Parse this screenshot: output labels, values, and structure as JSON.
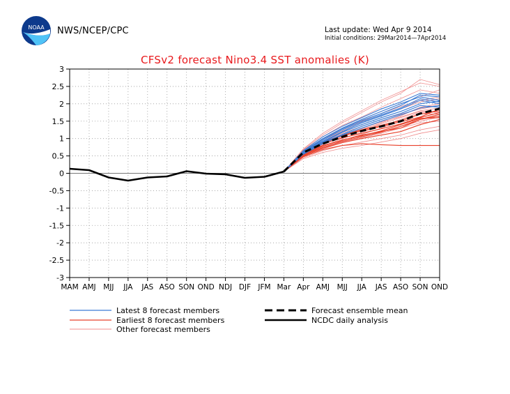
{
  "header": {
    "agency": "NWS/NCEP/CPC",
    "logo_text": "NOAA",
    "last_update": "Last update: Wed Apr 9 2014",
    "initial_conditions": "Initial conditions: 29Mar2014—7Apr2014"
  },
  "chart_data": {
    "type": "line",
    "title": "CFSv2 forecast Nino3.4 SST anomalies (K)",
    "xlabel": "",
    "ylabel": "",
    "categories": [
      "MAM",
      "AMJ",
      "MJJ",
      "JJA",
      "JAS",
      "ASO",
      "SON",
      "OND",
      "NDJ",
      "DJF",
      "JFM",
      "Mar",
      "Apr",
      "AMJ",
      "MJJ",
      "JJA",
      "JAS",
      "ASO",
      "SON",
      "OND"
    ],
    "ylim": [
      -3,
      3
    ],
    "yticks": [
      "-3",
      "-2.5",
      "-2",
      "-1.5",
      "-1",
      "-0.5",
      "0",
      "0.5",
      "1",
      "1.5",
      "2",
      "2.5",
      "3"
    ],
    "grid": true,
    "legend_position": "bottom",
    "colors": {
      "latest": "#3a7bd5",
      "earliest": "#e8402a",
      "other": "#f08c8c",
      "title": "#e8191c"
    },
    "legend": {
      "latest": "Latest 8 forecast members",
      "earliest": "Earliest 8 forecast members",
      "other": "Other forecast members",
      "mean": "Forecast ensemble mean",
      "analysis": "NCDC daily analysis"
    },
    "analysis": {
      "name": "NCDC daily analysis",
      "x_index": [
        0,
        1,
        2,
        3,
        4,
        5,
        6,
        7,
        8,
        9,
        10,
        11
      ],
      "values": [
        0.13,
        0.09,
        -0.12,
        -0.21,
        -0.12,
        -0.09,
        0.06,
        -0.01,
        -0.03,
        -0.13,
        -0.1,
        0.05
      ]
    },
    "ensemble_mean": {
      "name": "Forecast ensemble mean",
      "x_index": [
        11,
        12,
        13,
        14,
        15,
        16,
        17,
        18,
        19
      ],
      "values": [
        0.05,
        0.6,
        0.85,
        1.05,
        1.22,
        1.35,
        1.5,
        1.72,
        1.86
      ]
    },
    "latest_members": [
      [
        0.05,
        0.65,
        1.05,
        1.35,
        1.6,
        1.85,
        2.05,
        2.3,
        2.25
      ],
      [
        0.05,
        0.62,
        0.98,
        1.28,
        1.52,
        1.72,
        1.95,
        2.25,
        2.2
      ],
      [
        0.05,
        0.6,
        0.95,
        1.25,
        1.48,
        1.68,
        1.88,
        2.15,
        2.05
      ],
      [
        0.05,
        0.63,
        1.0,
        1.3,
        1.55,
        1.78,
        2.0,
        2.2,
        2.1
      ],
      [
        0.05,
        0.58,
        0.9,
        1.18,
        1.4,
        1.6,
        1.78,
        2.0,
        2.08
      ],
      [
        0.05,
        0.55,
        0.85,
        1.1,
        1.3,
        1.5,
        1.68,
        1.88,
        1.95
      ],
      [
        0.05,
        0.6,
        0.92,
        1.2,
        1.45,
        1.65,
        1.85,
        2.1,
        2.0
      ],
      [
        0.05,
        0.57,
        0.88,
        1.12,
        1.35,
        1.55,
        1.72,
        1.95,
        1.9
      ]
    ],
    "earliest_members": [
      [
        0.05,
        0.55,
        0.8,
        0.95,
        1.1,
        1.2,
        1.3,
        1.55,
        1.7
      ],
      [
        0.05,
        0.5,
        0.72,
        0.88,
        1.0,
        1.1,
        1.2,
        1.4,
        1.55
      ],
      [
        0.05,
        0.62,
        0.9,
        1.1,
        1.25,
        1.38,
        1.52,
        1.7,
        1.8
      ],
      [
        0.05,
        0.48,
        0.68,
        0.8,
        0.85,
        0.82,
        0.8,
        0.8,
        0.8
      ],
      [
        0.05,
        0.58,
        0.85,
        1.02,
        1.15,
        1.28,
        1.42,
        1.6,
        1.75
      ],
      [
        0.05,
        0.52,
        0.75,
        0.92,
        1.05,
        1.18,
        1.35,
        1.55,
        1.65
      ],
      [
        0.05,
        0.6,
        0.88,
        1.08,
        1.22,
        1.35,
        1.48,
        1.62,
        1.85
      ],
      [
        0.05,
        0.54,
        0.78,
        0.96,
        1.08,
        1.22,
        1.4,
        1.58,
        1.6
      ]
    ],
    "other_members": [
      [
        0.05,
        0.7,
        1.15,
        1.5,
        1.8,
        2.1,
        2.35,
        2.6,
        2.5
      ],
      [
        0.05,
        0.68,
        1.1,
        1.45,
        1.75,
        2.05,
        2.3,
        2.7,
        2.55
      ],
      [
        0.05,
        0.45,
        0.65,
        0.8,
        0.9,
        1.0,
        1.1,
        1.25,
        1.35
      ],
      [
        0.05,
        0.42,
        0.6,
        0.72,
        0.8,
        0.9,
        1.0,
        1.15,
        1.25
      ],
      [
        0.05,
        0.66,
        1.05,
        1.38,
        1.62,
        1.9,
        2.15,
        2.4,
        2.3
      ],
      [
        0.05,
        0.5,
        0.72,
        0.95,
        1.12,
        1.3,
        1.5,
        1.72,
        1.7
      ],
      [
        0.05,
        0.64,
        1.0,
        1.3,
        1.55,
        1.78,
        2.0,
        2.2,
        2.4
      ],
      [
        0.05,
        0.47,
        0.7,
        0.88,
        1.02,
        1.15,
        1.3,
        1.45,
        1.5
      ],
      [
        0.05,
        0.62,
        0.95,
        1.22,
        1.45,
        1.65,
        1.85,
        2.05,
        2.15
      ],
      [
        0.05,
        0.55,
        0.82,
        1.05,
        1.25,
        1.45,
        1.65,
        1.9,
        2.0
      ],
      [
        0.05,
        0.6,
        0.9,
        1.15,
        1.35,
        1.55,
        1.7,
        1.85,
        1.95
      ],
      [
        0.05,
        0.52,
        0.78,
        1.0,
        1.18,
        1.35,
        1.55,
        1.75,
        1.8
      ],
      [
        0.05,
        0.58,
        0.86,
        1.1,
        1.3,
        1.48,
        1.62,
        1.8,
        1.88
      ],
      [
        0.05,
        0.49,
        0.74,
        0.9,
        1.05,
        1.2,
        1.35,
        1.5,
        1.62
      ],
      [
        0.05,
        0.66,
        0.98,
        1.25,
        1.5,
        1.72,
        1.92,
        2.1,
        2.2
      ],
      [
        0.05,
        0.56,
        0.84,
        1.08,
        1.28,
        1.42,
        1.6,
        1.78,
        1.75
      ]
    ]
  }
}
